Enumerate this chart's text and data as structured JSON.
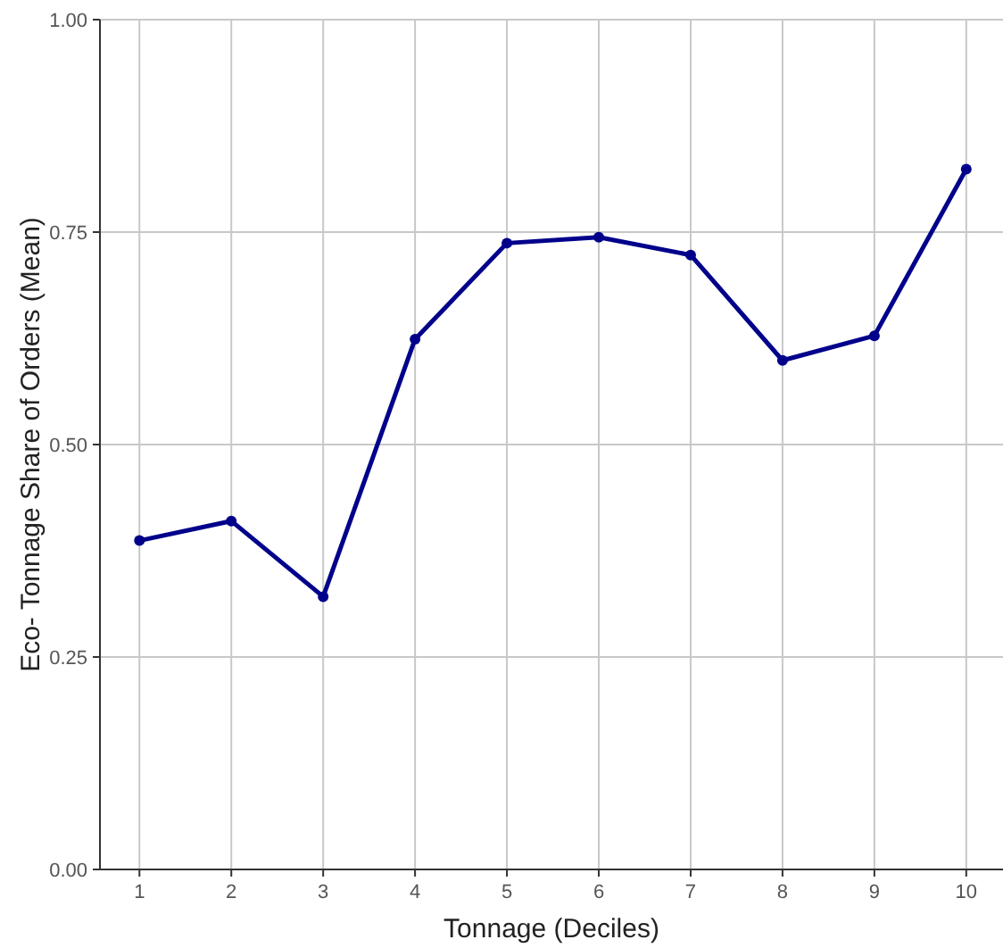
{
  "chart_data": {
    "type": "line",
    "xlabel": "Tonnage (Deciles)",
    "ylabel": "Eco- Tonnage Share of Orders (Mean)",
    "x": [
      1,
      2,
      3,
      4,
      5,
      6,
      7,
      8,
      9,
      10
    ],
    "series": [
      {
        "color": "#00008b",
        "values": [
          0.387,
          0.41,
          0.321,
          0.624,
          0.737,
          0.744,
          0.723,
          0.599,
          0.628,
          0.824
        ]
      }
    ],
    "xlim": [
      0.57,
      10.4
    ],
    "xticks": [
      1,
      2,
      3,
      4,
      5,
      6,
      7,
      8,
      9,
      10
    ],
    "ylim": [
      0,
      1
    ],
    "yticks": [
      {
        "value": 0,
        "label": "0.00"
      },
      {
        "value": 0.25,
        "label": "0.25"
      },
      {
        "value": 0.5,
        "label": "0.50"
      },
      {
        "value": 0.75,
        "label": "0.75"
      },
      {
        "value": 1,
        "label": "1.00"
      }
    ],
    "grid": true,
    "marker": "circle",
    "line_style": "solid"
  }
}
